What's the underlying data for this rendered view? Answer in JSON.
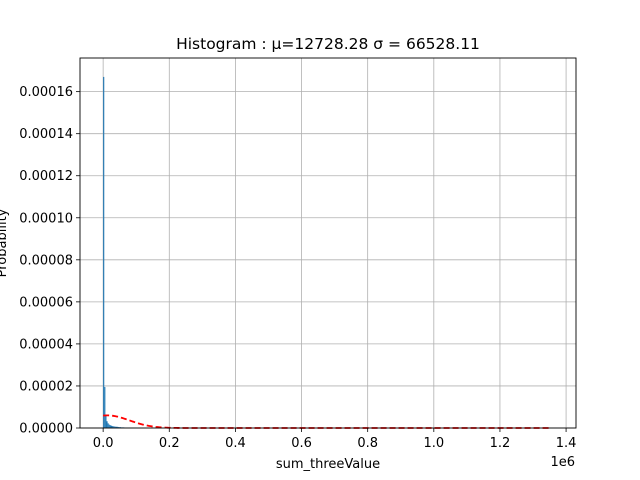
{
  "chart_data": {
    "type": "bar",
    "title": "Histogram : μ=12728.28 σ = 66528.11",
    "xlabel": "sum_threeValue",
    "ylabel": "Probability",
    "x_offset_label": "1e6",
    "xlim": [
      -70000,
      1430000
    ],
    "ylim": [
      0,
      0.000176
    ],
    "x_ticks": [
      0,
      200000,
      400000,
      600000,
      800000,
      1000000,
      1200000,
      1400000
    ],
    "x_tick_labels": [
      "0.0",
      "0.2",
      "0.4",
      "0.6",
      "0.8",
      "1.0",
      "1.2",
      "1.4"
    ],
    "y_ticks": [
      0,
      2e-05,
      4e-05,
      6e-05,
      8e-05,
      0.0001,
      0.00012,
      0.00014,
      0.00016
    ],
    "y_tick_labels": [
      "0.00000",
      "0.00002",
      "0.00004",
      "0.00006",
      "0.00008",
      "0.00010",
      "0.00012",
      "0.00014",
      "0.00016"
    ],
    "grid": true,
    "bar_color": "#1f77b4",
    "curve_color": "#ff0000",
    "series": [
      {
        "kind": "histogram",
        "bin_width": 3370,
        "bins": [
          [
            0,
            0.000167
          ],
          [
            3370,
            1.95e-05
          ],
          [
            6740,
            5.8e-06
          ],
          [
            10110,
            3.2e-06
          ],
          [
            13480,
            2.2e-06
          ],
          [
            16850,
            1.6e-06
          ],
          [
            20220,
            1.3e-06
          ],
          [
            23590,
            1.1e-06
          ],
          [
            26960,
            9e-07
          ],
          [
            30330,
            8e-07
          ],
          [
            33700,
            7e-07
          ],
          [
            37070,
            6e-07
          ],
          [
            40440,
            6e-07
          ],
          [
            43810,
            5e-07
          ],
          [
            47180,
            4e-07
          ],
          [
            50550,
            4e-07
          ],
          [
            53920,
            3e-07
          ],
          [
            57290,
            3e-07
          ],
          [
            60660,
            3e-07
          ],
          [
            64030,
            2e-07
          ],
          [
            67400,
            2e-07
          ],
          [
            70770,
            2e-07
          ],
          [
            74140,
            2e-07
          ],
          [
            77510,
            2e-07
          ],
          [
            80880,
            1e-07
          ],
          [
            84250,
            1e-07
          ],
          [
            87620,
            1e-07
          ],
          [
            90990,
            1e-07
          ],
          [
            94360,
            1e-07
          ],
          [
            97730,
            1e-07
          ]
        ]
      },
      {
        "kind": "normal_pdf_dashed",
        "mu": 12728.28,
        "sigma": 66528.11,
        "x_range": [
          0,
          1350000
        ]
      }
    ]
  }
}
